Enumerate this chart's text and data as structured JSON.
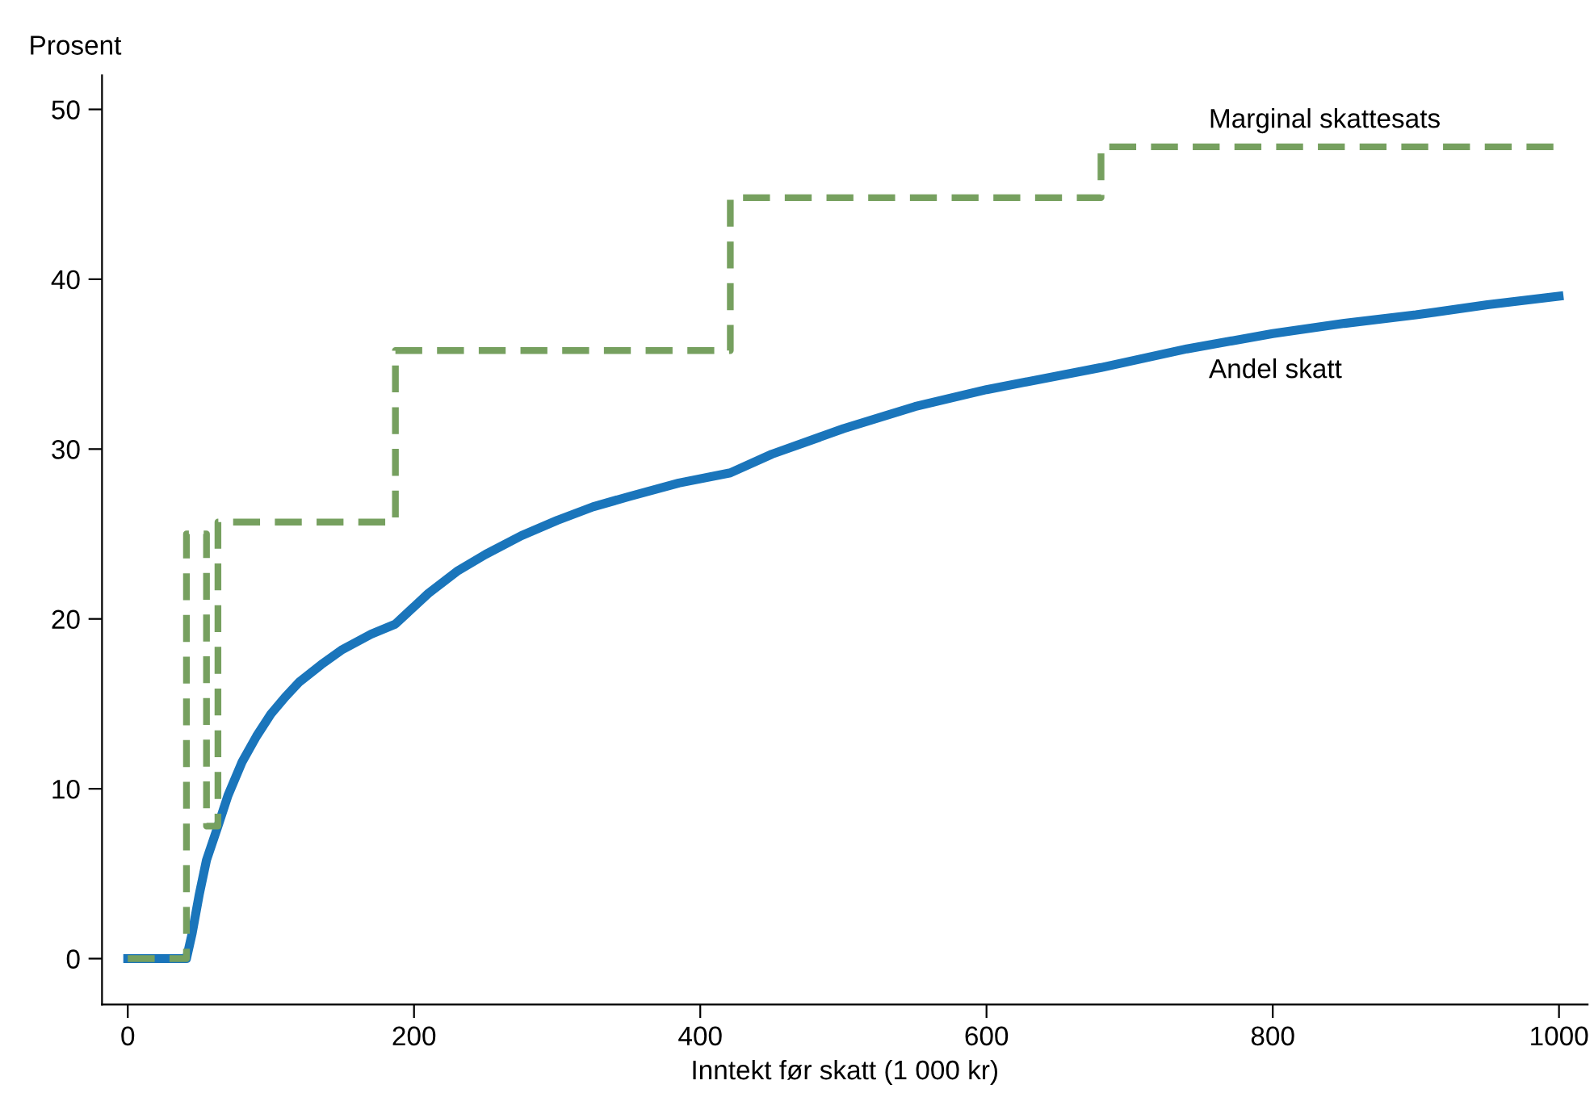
{
  "chart_data": {
    "type": "line",
    "xlabel": "Inntekt før skatt (1 000 kr)",
    "ylabel": "Prosent",
    "xlim": [
      -18,
      1020
    ],
    "ylim": [
      -2.7,
      52
    ],
    "xticks": [
      0,
      200,
      400,
      600,
      800,
      1000
    ],
    "yticks": [
      0,
      10,
      20,
      30,
      40,
      50
    ],
    "grid": false,
    "legend": false,
    "series": [
      {
        "name": "Marginal skattesats",
        "color": "#76a05f",
        "line_style": "dashed",
        "x": [
          0,
          41,
          41,
          55,
          55,
          63,
          63,
          187,
          187,
          421,
          421,
          680,
          680,
          1000
        ],
        "values": [
          0,
          0,
          25,
          25,
          7.8,
          7.8,
          25.7,
          25.7,
          35.8,
          35.8,
          44.8,
          44.8,
          47.8,
          47.8
        ]
      },
      {
        "name": "Andel skatt",
        "color": "#1a75bb",
        "line_style": "solid",
        "x": [
          0,
          41,
          45,
          50,
          55,
          63,
          70,
          80,
          90,
          100,
          110,
          120,
          135,
          150,
          170,
          187,
          210,
          230,
          250,
          275,
          300,
          325,
          350,
          385,
          421,
          450,
          500,
          550,
          600,
          680,
          740,
          800,
          850,
          900,
          950,
          1000
        ],
        "values": [
          0,
          0,
          1.5,
          3.8,
          5.8,
          7.8,
          9.6,
          11.6,
          13.1,
          14.4,
          15.4,
          16.3,
          17.3,
          18.2,
          19.1,
          19.7,
          21.5,
          22.8,
          23.8,
          24.9,
          25.8,
          26.6,
          27.2,
          28.0,
          28.6,
          29.7,
          31.2,
          32.5,
          33.5,
          34.8,
          35.9,
          36.8,
          37.4,
          37.9,
          38.5,
          39.0
        ]
      }
    ]
  }
}
